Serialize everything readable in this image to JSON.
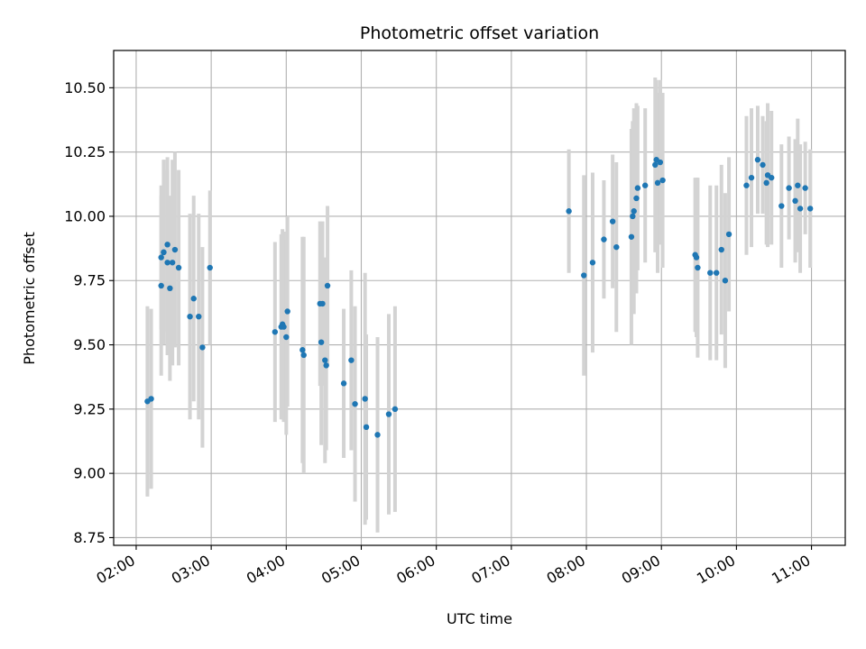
{
  "chart_data": {
    "type": "scatter",
    "title": "Photometric offset variation",
    "xlabel": "UTC time",
    "ylabel": "Photometric offset",
    "x_unit": "UTC hours",
    "xlim": [
      1.7,
      11.45
    ],
    "ylim": [
      8.72,
      10.645
    ],
    "grid": true,
    "xticks": [
      2,
      3,
      4,
      5,
      6,
      7,
      8,
      9,
      10,
      11
    ],
    "xtick_labels": [
      "02:00",
      "03:00",
      "04:00",
      "05:00",
      "06:00",
      "07:00",
      "08:00",
      "09:00",
      "10:00",
      "11:00"
    ],
    "yticks": [
      8.75,
      9.0,
      9.25,
      9.5,
      9.75,
      10.0,
      10.25,
      10.5
    ],
    "ytick_labels": [
      "8.75",
      "9.00",
      "9.25",
      "9.50",
      "9.75",
      "10.00",
      "10.25",
      "10.50"
    ],
    "colors": {
      "points": "#1f77b4",
      "errorbars": "#d3d3d3",
      "grid": "#b0b0b0"
    },
    "series": [
      {
        "x": [
          "02:09",
          "02:12",
          "02:20",
          "02:20",
          "02:22",
          "02:22",
          "02:25",
          "02:25",
          "02:27",
          "02:29",
          "02:31",
          "02:34",
          "02:43",
          "02:46",
          "02:50",
          "02:53",
          "02:59",
          "03:51",
          "03:56",
          "03:57",
          "03:58",
          "04:00",
          "04:01",
          "04:13",
          "04:14",
          "04:27",
          "04:28",
          "04:29",
          "04:31",
          "04:32",
          "04:33",
          "04:46",
          "04:52",
          "04:55",
          "05:03",
          "05:04",
          "05:13",
          "05:22",
          "05:27",
          "07:46",
          "07:58",
          "08:05",
          "08:14",
          "08:21",
          "08:24",
          "08:36",
          "08:37",
          "08:38",
          "08:40",
          "08:41",
          "08:47",
          "08:55",
          "08:56",
          "08:57",
          "08:59",
          "09:01",
          "09:27",
          "09:28",
          "09:29",
          "09:39",
          "09:44",
          "09:48",
          "09:51",
          "09:54",
          "10:08",
          "10:12",
          "10:17",
          "10:21",
          "10:24",
          "10:25",
          "10:28",
          "10:36",
          "10:42",
          "10:47",
          "10:49",
          "10:51",
          "10:55",
          "10:59"
        ],
        "y": [
          9.28,
          9.29,
          9.73,
          9.84,
          9.86,
          9.86,
          9.89,
          9.82,
          9.72,
          9.82,
          9.87,
          9.8,
          9.61,
          9.68,
          9.61,
          9.49,
          9.8,
          9.55,
          9.57,
          9.58,
          9.57,
          9.53,
          9.63,
          9.48,
          9.46,
          9.66,
          9.51,
          9.66,
          9.44,
          9.42,
          9.73,
          9.35,
          9.44,
          9.27,
          9.29,
          9.18,
          9.15,
          9.23,
          9.25,
          10.02,
          9.77,
          9.82,
          9.91,
          9.98,
          9.88,
          9.92,
          10.0,
          10.02,
          10.07,
          10.11,
          10.12,
          10.2,
          10.22,
          10.13,
          10.21,
          10.14,
          9.85,
          9.84,
          9.8,
          9.78,
          9.78,
          9.87,
          9.75,
          9.93,
          10.12,
          10.15,
          10.22,
          10.2,
          10.13,
          10.16,
          10.15,
          10.04,
          10.11,
          10.06,
          10.12,
          10.03,
          10.11,
          10.03
        ],
        "yerr": [
          0.37,
          0.35,
          0.35,
          0.28,
          0.36,
          0.36,
          0.34,
          0.36,
          0.36,
          0.4,
          0.38,
          0.38,
          0.4,
          0.4,
          0.4,
          0.39,
          0.3,
          0.35,
          0.36,
          0.37,
          0.37,
          0.38,
          0.37,
          0.44,
          0.46,
          0.32,
          0.4,
          0.32,
          0.4,
          0.33,
          0.31,
          0.29,
          0.35,
          0.38,
          0.49,
          0.36,
          0.38,
          0.39,
          0.4,
          0.24,
          0.39,
          0.35,
          0.23,
          0.26,
          0.33,
          0.42,
          0.37,
          0.4,
          0.37,
          0.32,
          0.3,
          0.34,
          0.31,
          0.35,
          0.32,
          0.34,
          0.3,
          0.31,
          0.35,
          0.34,
          0.34,
          0.33,
          0.34,
          0.3,
          0.27,
          0.27,
          0.21,
          0.19,
          0.24,
          0.28,
          0.26,
          0.24,
          0.2,
          0.24,
          0.26,
          0.25,
          0.18,
          0.23
        ]
      }
    ]
  }
}
